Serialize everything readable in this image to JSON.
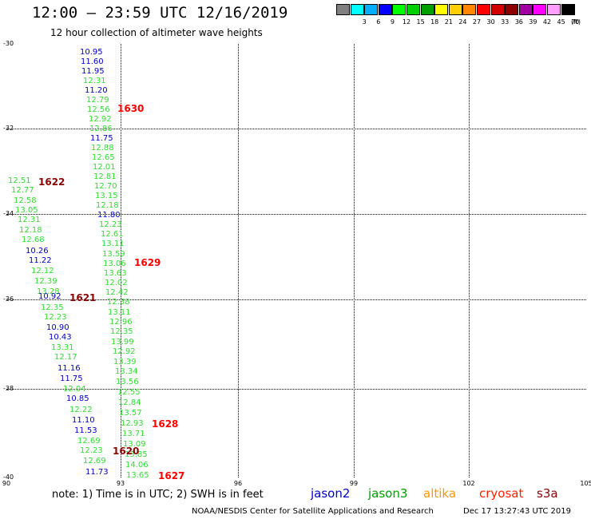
{
  "header": {
    "title": "12:00 – 23:59 UTC 12/16/2019",
    "subtitle": "12 hour collection of altimeter wave heights"
  },
  "legend": {
    "unit": "(ft)",
    "bins": [
      {
        "label": "",
        "color": "#808080"
      },
      {
        "label": "3",
        "color": "#00ffff"
      },
      {
        "label": "6",
        "color": "#00b0ff"
      },
      {
        "label": "9",
        "color": "#0000ff"
      },
      {
        "label": "12",
        "color": "#00ff00"
      },
      {
        "label": "15",
        "color": "#00d000"
      },
      {
        "label": "18",
        "color": "#00a000"
      },
      {
        "label": "21",
        "color": "#ffff00"
      },
      {
        "label": "24",
        "color": "#ffd000"
      },
      {
        "label": "27",
        "color": "#ff8800"
      },
      {
        "label": "30",
        "color": "#ff0000"
      },
      {
        "label": "33",
        "color": "#d00000"
      },
      {
        "label": "36",
        "color": "#8b0000"
      },
      {
        "label": "39",
        "color": "#a000a0"
      },
      {
        "label": "42",
        "color": "#ff00ff"
      },
      {
        "label": "45",
        "color": "#ffa0ff"
      },
      {
        "label": "70",
        "color": "#000000"
      }
    ]
  },
  "map": {
    "lat_labels": [
      "-30",
      "-32",
      "-34",
      "-36",
      "-38",
      "-40"
    ],
    "lon_labels": [
      "90",
      "93",
      "96",
      "99",
      "102",
      "105"
    ],
    "lat_range": [
      -40,
      -30
    ],
    "lon_range": [
      90,
      105
    ]
  },
  "colors": {
    "blue": "#0000c8",
    "green": "#33dd33",
    "darkgreen": "#00a000",
    "red": "#ff0000",
    "darkred": "#8b0000",
    "orange": "#ff9900",
    "cryosat": "#ff2200"
  },
  "observations": [
    {
      "text": "10.95",
      "c": "blue"
    },
    {
      "text": "11.60",
      "c": "blue"
    },
    {
      "text": "11.95",
      "c": "blue"
    },
    {
      "text": "12.31",
      "c": "green"
    },
    {
      "text": "11.20",
      "c": "blue"
    },
    {
      "text": "12.79",
      "c": "green"
    },
    {
      "text": "12.56",
      "c": "green"
    },
    {
      "text": "12.92",
      "c": "green"
    },
    {
      "text": "12.86",
      "c": "green"
    },
    {
      "text": "11.75",
      "c": "blue"
    },
    {
      "text": "12.88",
      "c": "green"
    },
    {
      "text": "12.65",
      "c": "green"
    },
    {
      "text": "12.01",
      "c": "green"
    },
    {
      "text": "12.81",
      "c": "green"
    },
    {
      "text": "12.70",
      "c": "green"
    },
    {
      "text": "13.15",
      "c": "green"
    },
    {
      "text": "12.18",
      "c": "green"
    },
    {
      "text": "11.80",
      "c": "blue"
    },
    {
      "text": "12.23",
      "c": "green"
    },
    {
      "text": "12.61",
      "c": "green"
    },
    {
      "text": "13.11",
      "c": "green"
    },
    {
      "text": "13.59",
      "c": "green"
    },
    {
      "text": "13.06",
      "c": "green"
    },
    {
      "text": "13.63",
      "c": "green"
    },
    {
      "text": "12.02",
      "c": "green"
    },
    {
      "text": "12.42",
      "c": "green"
    },
    {
      "text": "12.38",
      "c": "green"
    },
    {
      "text": "13.11",
      "c": "green"
    },
    {
      "text": "12.96",
      "c": "green"
    },
    {
      "text": "12.35",
      "c": "green"
    },
    {
      "text": "13.99",
      "c": "green"
    },
    {
      "text": "12.92",
      "c": "green"
    },
    {
      "text": "13.39",
      "c": "green"
    },
    {
      "text": "13.34",
      "c": "green"
    },
    {
      "text": "13.56",
      "c": "green"
    },
    {
      "text": "12.55",
      "c": "green"
    },
    {
      "text": "12.84",
      "c": "green"
    },
    {
      "text": "13.57",
      "c": "green"
    },
    {
      "text": "12.93",
      "c": "green"
    },
    {
      "text": "13.71",
      "c": "green"
    },
    {
      "text": "13.09",
      "c": "green"
    },
    {
      "text": "13.85",
      "c": "green"
    },
    {
      "text": "14.06",
      "c": "green"
    },
    {
      "text": "13.65",
      "c": "green"
    },
    {
      "text": "12.51",
      "c": "green"
    },
    {
      "text": "12.77",
      "c": "green"
    },
    {
      "text": "12.58",
      "c": "green"
    },
    {
      "text": "13.05",
      "c": "green"
    },
    {
      "text": "12.31",
      "c": "green"
    },
    {
      "text": "12.18",
      "c": "green"
    },
    {
      "text": "12.68",
      "c": "green"
    },
    {
      "text": "10.26",
      "c": "blue"
    },
    {
      "text": "11.22",
      "c": "blue"
    },
    {
      "text": "12.12",
      "c": "green"
    },
    {
      "text": "12.39",
      "c": "green"
    },
    {
      "text": "13.28",
      "c": "green"
    },
    {
      "text": "10.92",
      "c": "blue"
    },
    {
      "text": "12.35",
      "c": "green"
    },
    {
      "text": "12.23",
      "c": "green"
    },
    {
      "text": "10.90",
      "c": "blue"
    },
    {
      "text": "10.43",
      "c": "blue"
    },
    {
      "text": "13.31",
      "c": "green"
    },
    {
      "text": "12.17",
      "c": "green"
    },
    {
      "text": "11.16",
      "c": "blue"
    },
    {
      "text": "11.75",
      "c": "blue"
    },
    {
      "text": "12.04",
      "c": "green"
    },
    {
      "text": "10.85",
      "c": "blue"
    },
    {
      "text": "12.22",
      "c": "green"
    },
    {
      "text": "11.10",
      "c": "blue"
    },
    {
      "text": "11.53",
      "c": "blue"
    },
    {
      "text": "12.69",
      "c": "green"
    },
    {
      "text": "12.23",
      "c": "green"
    },
    {
      "text": "12.69",
      "c": "green"
    },
    {
      "text": "11.73",
      "c": "blue"
    }
  ],
  "pass_labels": [
    {
      "text": "1630",
      "c": "red"
    },
    {
      "text": "1622",
      "c": "darkred"
    },
    {
      "text": "1629",
      "c": "red"
    },
    {
      "text": "1621",
      "c": "darkred"
    },
    {
      "text": "1628",
      "c": "red"
    },
    {
      "text": "1620",
      "c": "darkred"
    },
    {
      "text": "1627",
      "c": "red"
    }
  ],
  "footer": {
    "note": "note:  1) Time is in UTC;  2) SWH is in feet",
    "satellites": [
      {
        "name": "jason2",
        "c": "blue"
      },
      {
        "name": "jason3",
        "c": "darkgreen"
      },
      {
        "name": "altika",
        "c": "orange"
      },
      {
        "name": "cryosat",
        "c": "cryosat"
      },
      {
        "name": "s3a",
        "c": "darkred"
      }
    ],
    "credit": "NOAA/NESDIS Center for Satellite Applications and Research",
    "timestamp": "Dec 17 13:27:43 UTC 2019"
  }
}
